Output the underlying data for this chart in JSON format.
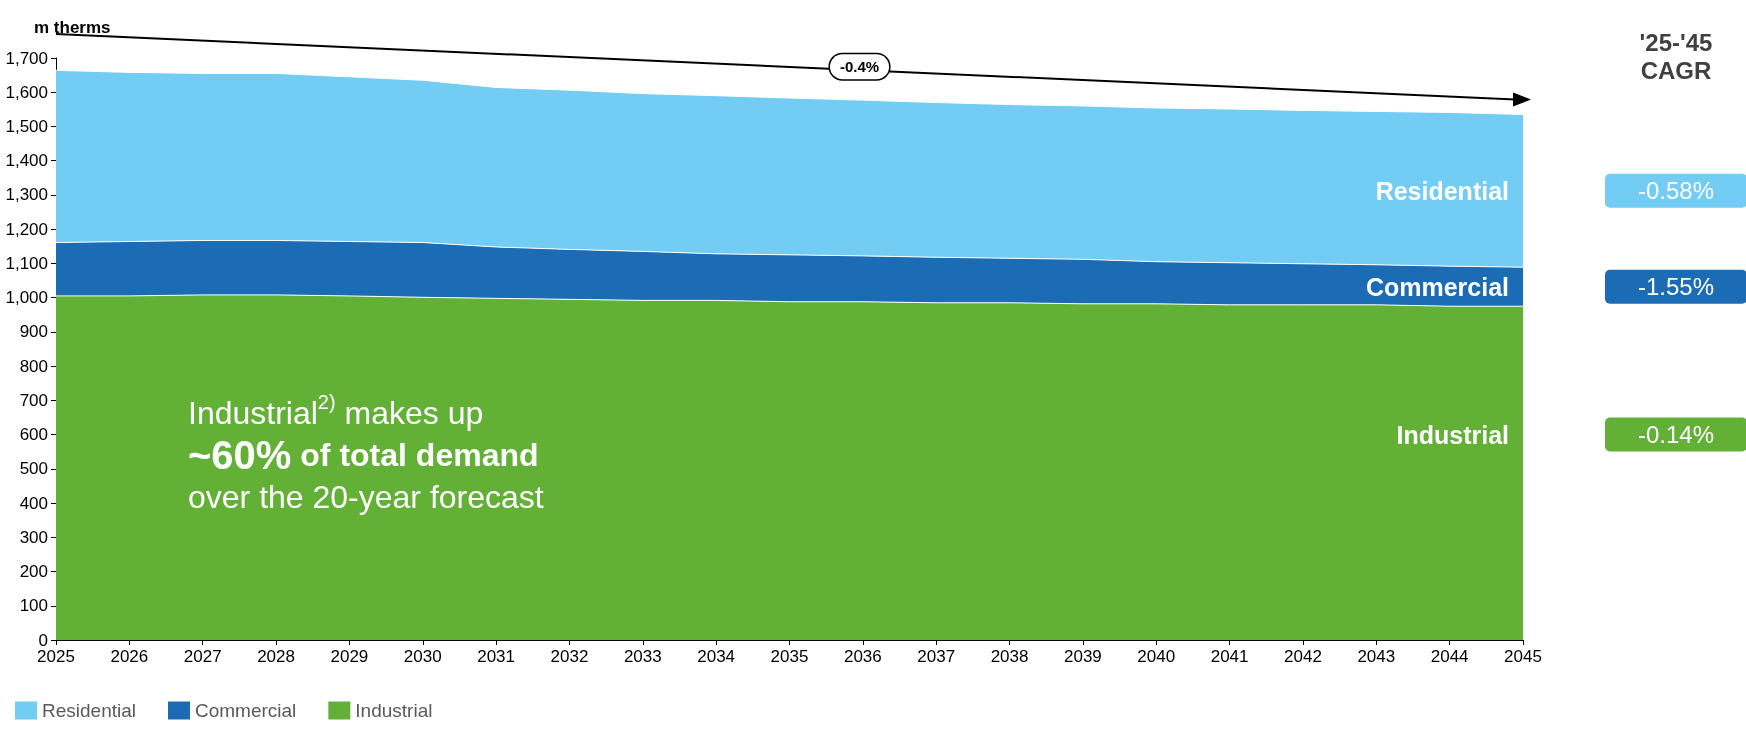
{
  "chart_data": {
    "type": "area",
    "ylabel": "m therms",
    "categories": [
      "2025",
      "2026",
      "2027",
      "2028",
      "2029",
      "2030",
      "2031",
      "2032",
      "2033",
      "2034",
      "2035",
      "2036",
      "2037",
      "2038",
      "2039",
      "2040",
      "2041",
      "2042",
      "2043",
      "2044",
      "2045"
    ],
    "stacked": true,
    "series": [
      {
        "name": "Industrial",
        "color": "#62b036",
        "values": [
          1005,
          1005,
          1008,
          1008,
          1005,
          1001,
          998,
          995,
          992,
          992,
          988,
          988,
          985,
          985,
          982,
          982,
          979,
          979,
          979,
          975,
          975
        ]
      },
      {
        "name": "Commercial",
        "color": "#1c6bb5",
        "values": [
          156,
          159,
          159,
          159,
          159,
          160,
          150,
          146,
          143,
          136,
          137,
          134,
          133,
          130,
          130,
          123,
          123,
          120,
          117,
          117,
          114
        ]
      },
      {
        "name": "Residential",
        "color": "#72ccf3",
        "values": [
          503,
          494,
          488,
          488,
          481,
          474,
          466,
          465,
          461,
          462,
          458,
          455,
          452,
          449,
          448,
          449,
          449,
          448,
          448,
          449,
          446
        ]
      }
    ],
    "ylim": [
      0,
      1700
    ],
    "yticks": [
      0,
      100,
      200,
      300,
      400,
      500,
      600,
      700,
      800,
      900,
      {
        "value": 1000,
        "label": "1,000"
      },
      {
        "value": 1100,
        "label": "1,100"
      },
      {
        "value": 1200,
        "label": "1,200"
      },
      {
        "value": 1300,
        "label": "1,300"
      },
      {
        "value": 1400,
        "label": "1,400"
      },
      {
        "value": 1500,
        "label": "1,500"
      },
      {
        "value": 1600,
        "label": "1,600"
      },
      {
        "value": 1700,
        "label": "1,700"
      }
    ],
    "grid": false,
    "legend": "bottom left",
    "annotations": [
      "-0.4%",
      "'25-'45\nCAGR",
      "-0.14%",
      "-1.55%",
      "-0.58%",
      "Industrial$^{2)}$ makes up\n~60% of total demand\nover the 20-year forecast"
    ]
  }
}
